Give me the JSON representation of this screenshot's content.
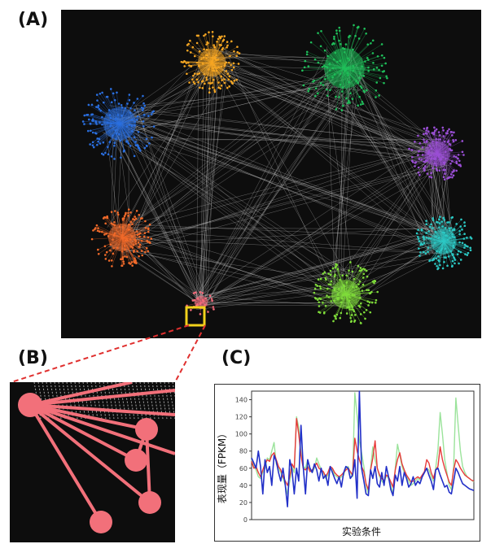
{
  "labels": {
    "panel_a": "(A)",
    "panel_b": "(B)",
    "panel_c": "(C)"
  },
  "network": {
    "background": "#0d0d0d",
    "edge_color": "#d0d0d0",
    "highlight_color": "#f2d21b",
    "clusters": [
      {
        "name": "orange-cluster",
        "color": "#f5a623"
      },
      {
        "name": "green-cluster",
        "color": "#1fbf5a"
      },
      {
        "name": "blue-cluster",
        "color": "#2a6fe0"
      },
      {
        "name": "purple-cluster",
        "color": "#9b4fd6"
      },
      {
        "name": "cyan-cluster",
        "color": "#2bc9c4"
      },
      {
        "name": "red-orange-cluster",
        "color": "#f06a2a"
      },
      {
        "name": "lime-cluster",
        "color": "#7fdc3a"
      },
      {
        "name": "pink-cluster",
        "color": "#f46a7a"
      }
    ]
  },
  "zoom": {
    "node_color": "#f2707a",
    "connector_color": "#e0302f"
  },
  "chart_data": {
    "type": "line",
    "title": "",
    "xlabel": "实验条件",
    "ylabel": "表现量（FPKM）",
    "ylim": [
      0,
      150
    ],
    "yticks": [
      0,
      20,
      40,
      60,
      80,
      100,
      120,
      140
    ],
    "grid": false,
    "series": [
      {
        "color": "#9be39b",
        "values": [
          70,
          62,
          58,
          50,
          48,
          55,
          60,
          72,
          70,
          80,
          90,
          65,
          60,
          55,
          48,
          40,
          30,
          45,
          62,
          55,
          120,
          108,
          78,
          62,
          60,
          70,
          58,
          55,
          60,
          72,
          65,
          58,
          55,
          48,
          52,
          60,
          58,
          52,
          50,
          48,
          50,
          52,
          60,
          62,
          55,
          50,
          148,
          122,
          92,
          78,
          62,
          40,
          30,
          60,
          85,
          70,
          60,
          50,
          45,
          42,
          52,
          48,
          40,
          30,
          60,
          88,
          75,
          62,
          55,
          50,
          45,
          40,
          42,
          45,
          48,
          46,
          50,
          55,
          60,
          58,
          50,
          45,
          60,
          82,
          125,
          100,
          70,
          55,
          40,
          35,
          62,
          142,
          110,
          80,
          62,
          55,
          50,
          48,
          46,
          44
        ]
      },
      {
        "color": "#e83a3a",
        "values": [
          68,
          60,
          62,
          55,
          50,
          58,
          65,
          70,
          68,
          75,
          78,
          70,
          62,
          58,
          50,
          45,
          40,
          50,
          65,
          60,
          118,
          100,
          75,
          60,
          58,
          62,
          56,
          58,
          62,
          66,
          60,
          58,
          56,
          50,
          55,
          62,
          60,
          55,
          52,
          50,
          52,
          55,
          58,
          60,
          56,
          52,
          95,
          80,
          70,
          62,
          56,
          42,
          35,
          58,
          72,
          92,
          60,
          52,
          48,
          45,
          52,
          50,
          44,
          38,
          58,
          70,
          78,
          65,
          58,
          52,
          48,
          44,
          45,
          48,
          50,
          48,
          52,
          56,
          70,
          66,
          55,
          48,
          58,
          62,
          85,
          70,
          60,
          52,
          44,
          40,
          58,
          70,
          66,
          60,
          56,
          52,
          50,
          48,
          46,
          45
        ]
      },
      {
        "color": "#2230c8",
        "values": [
          72,
          66,
          60,
          80,
          62,
          30,
          70,
          55,
          62,
          40,
          75,
          68,
          55,
          45,
          60,
          40,
          15,
          70,
          58,
          30,
          60,
          45,
          110,
          62,
          30,
          70,
          60,
          55,
          65,
          58,
          45,
          60,
          48,
          52,
          40,
          62,
          55,
          48,
          42,
          50,
          38,
          55,
          62,
          60,
          48,
          52,
          70,
          25,
          150,
          60,
          45,
          30,
          28,
          58,
          48,
          62,
          42,
          38,
          55,
          40,
          62,
          50,
          35,
          28,
          52,
          45,
          62,
          40,
          55,
          48,
          38,
          42,
          50,
          40,
          45,
          42,
          50,
          55,
          60,
          52,
          45,
          35,
          58,
          60,
          52,
          45,
          38,
          40,
          32,
          30,
          45,
          60,
          55,
          48,
          42,
          40,
          38,
          36,
          35,
          34
        ]
      }
    ]
  }
}
